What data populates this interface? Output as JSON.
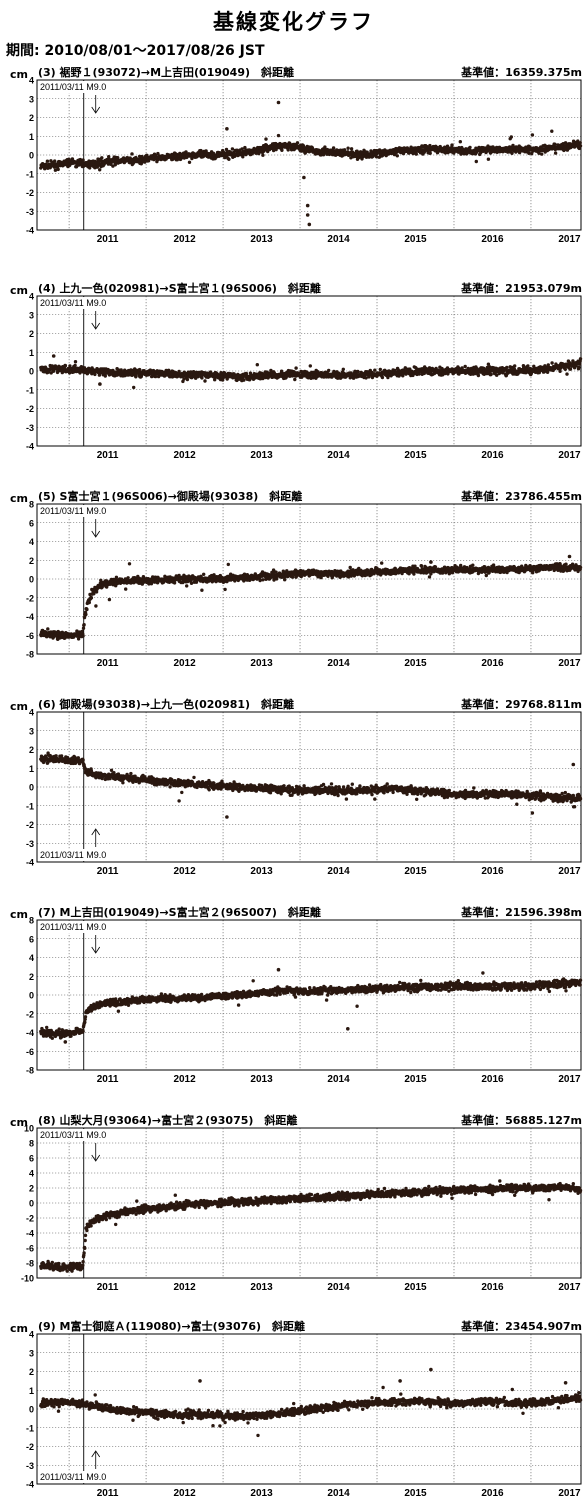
{
  "page": {
    "title": "基線変化グラフ",
    "period": "期間: 2010/08/01～2017/08/26 JST"
  },
  "chart_data": [
    {
      "type": "scatter",
      "title": "(3) 裾野１(93072)→M上吉田(019049)　斜距離",
      "baseline": "基準値：16359.375m",
      "ylabel": "cm",
      "ylim": [
        -4,
        4
      ],
      "yticks": [
        "4",
        "3",
        "2",
        "1",
        "0",
        "-1",
        "-2",
        "-3",
        "-4"
      ],
      "x_ticks": [
        "2011",
        "2012",
        "2013",
        "2014",
        "2015",
        "2016",
        "2017"
      ],
      "event_label": "2011/03/11 M9.0",
      "event_label_pos": "top",
      "series": [
        {
          "points": [
            [
              2010.7,
              -0.6
            ],
            [
              2010.9,
              -0.5
            ],
            [
              2011.0,
              -0.4
            ],
            [
              2011.3,
              -0.5
            ],
            [
              2011.5,
              -0.3
            ],
            [
              2011.8,
              -0.3
            ],
            [
              2012.0,
              -0.2
            ],
            [
              2012.3,
              -0.1
            ],
            [
              2012.6,
              0.0
            ],
            [
              2012.9,
              0.0
            ],
            [
              2013.2,
              0.1
            ],
            [
              2013.5,
              0.3
            ],
            [
              2013.8,
              0.5
            ],
            [
              2014.0,
              0.4
            ],
            [
              2014.2,
              0.2
            ],
            [
              2014.5,
              0.1
            ],
            [
              2014.8,
              0.0
            ],
            [
              2015.0,
              0.1
            ],
            [
              2015.3,
              0.2
            ],
            [
              2015.6,
              0.3
            ],
            [
              2015.9,
              0.3
            ],
            [
              2016.2,
              0.2
            ],
            [
              2016.5,
              0.3
            ],
            [
              2016.8,
              0.3
            ],
            [
              2017.1,
              0.3
            ],
            [
              2017.4,
              0.4
            ],
            [
              2017.65,
              0.6
            ]
          ]
        }
      ],
      "outliers": [
        [
          2013.72,
          2.8
        ],
        [
          2014.1,
          -3.2
        ],
        [
          2014.12,
          -3.7
        ],
        [
          2014.1,
          -2.7
        ],
        [
          2013.05,
          1.4
        ],
        [
          2014.05,
          -1.2
        ]
      ]
    },
    {
      "type": "scatter",
      "title": "(4) 上九一色(020981)→S富士宮１(96S006)　斜距離",
      "baseline": "基準値：21953.079m",
      "ylabel": "cm",
      "ylim": [
        -4,
        4
      ],
      "yticks": [
        "4",
        "3",
        "2",
        "1",
        "0",
        "-1",
        "-2",
        "-3",
        "-4"
      ],
      "x_ticks": [
        "2011",
        "2012",
        "2013",
        "2014",
        "2015",
        "2016",
        "2017"
      ],
      "event_label": "2011/03/11 M9.0",
      "event_label_pos": "top",
      "series": [
        {
          "points": [
            [
              2010.7,
              0.1
            ],
            [
              2011.0,
              0.1
            ],
            [
              2011.3,
              0.0
            ],
            [
              2011.6,
              -0.1
            ],
            [
              2012.0,
              -0.1
            ],
            [
              2012.4,
              -0.2
            ],
            [
              2012.8,
              -0.2
            ],
            [
              2013.2,
              -0.3
            ],
            [
              2013.6,
              -0.2
            ],
            [
              2014.0,
              -0.2
            ],
            [
              2014.4,
              -0.2
            ],
            [
              2014.8,
              -0.2
            ],
            [
              2015.2,
              -0.1
            ],
            [
              2015.6,
              0.0
            ],
            [
              2016.0,
              0.0
            ],
            [
              2016.4,
              0.0
            ],
            [
              2016.8,
              0.0
            ],
            [
              2017.2,
              0.1
            ],
            [
              2017.65,
              0.4
            ]
          ]
        }
      ],
      "outliers": [
        [
          2010.8,
          0.8
        ],
        [
          2011.4,
          -0.7
        ]
      ]
    },
    {
      "type": "scatter",
      "title": "(5) S富士宮１(96S006)→御殿場(93038)　斜距離",
      "baseline": "基準値：23786.455m",
      "ylabel": "cm",
      "ylim": [
        -8,
        8
      ],
      "yticks": [
        "8",
        "6",
        "4",
        "2",
        "0",
        "-2",
        "-4",
        "-6",
        "-8"
      ],
      "x_ticks": [
        "2011",
        "2012",
        "2013",
        "2014",
        "2015",
        "2016",
        "2017"
      ],
      "event_label": "2011/03/11 M9.0",
      "event_label_pos": "top",
      "series": [
        {
          "points": [
            [
              2010.65,
              -5.8
            ],
            [
              2010.9,
              -6.0
            ],
            [
              2011.1,
              -6.0
            ],
            [
              2011.18,
              -5.9
            ],
            [
              2011.21,
              -3.6
            ],
            [
              2011.25,
              -2.4
            ],
            [
              2011.3,
              -1.4
            ],
            [
              2011.4,
              -0.6
            ],
            [
              2011.6,
              -0.3
            ],
            [
              2012.0,
              -0.1
            ],
            [
              2012.5,
              0.0
            ],
            [
              2013.0,
              0.0
            ],
            [
              2013.5,
              0.3
            ],
            [
              2014.0,
              0.6
            ],
            [
              2014.5,
              0.6
            ],
            [
              2015.0,
              0.8
            ],
            [
              2015.5,
              0.9
            ],
            [
              2016.0,
              1.0
            ],
            [
              2016.5,
              1.0
            ],
            [
              2017.0,
              1.1
            ],
            [
              2017.4,
              1.3
            ],
            [
              2017.65,
              1.2
            ]
          ]
        }
      ],
      "outliers": [
        [
          2017.5,
          2.4
        ],
        [
          2015.7,
          1.8
        ]
      ]
    },
    {
      "type": "scatter",
      "title": "(6) 御殿場(93038)→上九一色(020981)　斜距離",
      "baseline": "基準値：29768.811m",
      "ylabel": "cm",
      "ylim": [
        -4,
        4
      ],
      "yticks": [
        "4",
        "3",
        "2",
        "1",
        "0",
        "-1",
        "-2",
        "-3",
        "-4"
      ],
      "x_ticks": [
        "2011",
        "2012",
        "2013",
        "2014",
        "2015",
        "2016",
        "2017"
      ],
      "event_label": "2011/03/11 M9.0",
      "event_label_pos": "bottom",
      "series": [
        {
          "points": [
            [
              2010.65,
              1.5
            ],
            [
              2010.9,
              1.5
            ],
            [
              2011.1,
              1.4
            ],
            [
              2011.18,
              1.4
            ],
            [
              2011.22,
              0.8
            ],
            [
              2011.4,
              0.6
            ],
            [
              2011.7,
              0.5
            ],
            [
              2012.0,
              0.4
            ],
            [
              2012.4,
              0.2
            ],
            [
              2012.8,
              0.1
            ],
            [
              2013.2,
              0.0
            ],
            [
              2013.6,
              -0.1
            ],
            [
              2014.0,
              -0.2
            ],
            [
              2014.4,
              -0.2
            ],
            [
              2014.8,
              -0.2
            ],
            [
              2015.2,
              -0.1
            ],
            [
              2015.6,
              -0.2
            ],
            [
              2016.0,
              -0.4
            ],
            [
              2016.4,
              -0.4
            ],
            [
              2016.8,
              -0.4
            ],
            [
              2017.2,
              -0.5
            ],
            [
              2017.65,
              -0.6
            ]
          ]
        }
      ],
      "outliers": [
        [
          2017.55,
          1.2
        ],
        [
          2013.05,
          -1.6
        ]
      ]
    },
    {
      "type": "scatter",
      "title": "(7) M上吉田(019049)→S富士宮２(96S007)　斜距離",
      "baseline": "基準値：21596.398m",
      "ylabel": "cm",
      "ylim": [
        -8,
        8
      ],
      "yticks": [
        "8",
        "6",
        "4",
        "2",
        "0",
        "-2",
        "-4",
        "-6",
        "-8"
      ],
      "x_ticks": [
        "2011",
        "2012",
        "2013",
        "2014",
        "2015",
        "2016",
        "2017"
      ],
      "event_label": "2011/03/11 M9.0",
      "event_label_pos": "top",
      "series": [
        {
          "points": [
            [
              2010.65,
              -4.0
            ],
            [
              2010.9,
              -4.1
            ],
            [
              2011.1,
              -3.9
            ],
            [
              2011.18,
              -3.8
            ],
            [
              2011.22,
              -1.9
            ],
            [
              2011.3,
              -1.3
            ],
            [
              2011.5,
              -0.9
            ],
            [
              2011.8,
              -0.6
            ],
            [
              2012.2,
              -0.4
            ],
            [
              2012.6,
              -0.3
            ],
            [
              2013.0,
              -0.1
            ],
            [
              2013.4,
              0.1
            ],
            [
              2013.8,
              0.5
            ],
            [
              2014.2,
              0.4
            ],
            [
              2014.6,
              0.5
            ],
            [
              2015.0,
              0.7
            ],
            [
              2015.4,
              0.8
            ],
            [
              2015.8,
              0.9
            ],
            [
              2016.2,
              0.9
            ],
            [
              2016.6,
              0.9
            ],
            [
              2017.0,
              1.0
            ],
            [
              2017.4,
              1.2
            ],
            [
              2017.65,
              1.4
            ]
          ]
        }
      ],
      "outliers": [
        [
          2013.72,
          2.7
        ],
        [
          2014.62,
          -3.6
        ],
        [
          2010.95,
          -5.0
        ]
      ]
    },
    {
      "type": "scatter",
      "title": "(8) 山梨大月(93064)→富士宮２(93075)　斜距離",
      "baseline": "基準値：56885.127m",
      "ylabel": "cm",
      "ylim": [
        -10,
        10
      ],
      "yticks": [
        "10",
        "8",
        "6",
        "4",
        "2",
        "0",
        "-2",
        "-4",
        "-6",
        "-8",
        "-10"
      ],
      "x_ticks": [
        "2011",
        "2012",
        "2013",
        "2014",
        "2015",
        "2016",
        "2017"
      ],
      "event_label": "2011/03/11 M9.0",
      "event_label_pos": "top",
      "series": [
        {
          "points": [
            [
              2010.65,
              -8.3
            ],
            [
              2010.9,
              -8.5
            ],
            [
              2011.1,
              -8.6
            ],
            [
              2011.18,
              -8.5
            ],
            [
              2011.22,
              -3.4
            ],
            [
              2011.3,
              -2.4
            ],
            [
              2011.5,
              -1.6
            ],
            [
              2011.8,
              -1.0
            ],
            [
              2012.2,
              -0.6
            ],
            [
              2012.6,
              -0.2
            ],
            [
              2013.0,
              0.1
            ],
            [
              2013.4,
              0.3
            ],
            [
              2013.8,
              0.5
            ],
            [
              2014.2,
              0.7
            ],
            [
              2014.6,
              0.9
            ],
            [
              2015.0,
              1.2
            ],
            [
              2015.4,
              1.4
            ],
            [
              2015.8,
              1.6
            ],
            [
              2016.2,
              1.8
            ],
            [
              2016.6,
              1.9
            ],
            [
              2017.0,
              2.0
            ],
            [
              2017.4,
              2.1
            ],
            [
              2017.65,
              1.8
            ]
          ]
        }
      ],
      "outliers": []
    },
    {
      "type": "scatter",
      "title": "(9) M富士御庭Ａ(119080)→富士(93076)　斜距離",
      "baseline": "基準値：23454.907m",
      "ylabel": "cm",
      "ylim": [
        -4,
        4
      ],
      "yticks": [
        "4",
        "3",
        "2",
        "1",
        "0",
        "-1",
        "-2",
        "-3",
        "-4"
      ],
      "x_ticks": [
        "2011",
        "2012",
        "2013",
        "2014",
        "2015",
        "2016",
        "2017"
      ],
      "event_label": "2011/03/11 M9.0",
      "event_label_pos": "bottom",
      "series": [
        {
          "points": [
            [
              2010.65,
              0.3
            ],
            [
              2010.9,
              0.4
            ],
            [
              2011.1,
              0.3
            ],
            [
              2011.4,
              0.1
            ],
            [
              2011.7,
              -0.1
            ],
            [
              2012.0,
              -0.2
            ],
            [
              2012.4,
              -0.3
            ],
            [
              2012.8,
              -0.3
            ],
            [
              2013.2,
              -0.4
            ],
            [
              2013.6,
              -0.3
            ],
            [
              2014.0,
              -0.1
            ],
            [
              2014.4,
              0.1
            ],
            [
              2014.8,
              0.3
            ],
            [
              2015.2,
              0.4
            ],
            [
              2015.6,
              0.4
            ],
            [
              2016.0,
              0.3
            ],
            [
              2016.4,
              0.4
            ],
            [
              2016.8,
              0.3
            ],
            [
              2017.2,
              0.4
            ],
            [
              2017.65,
              0.6
            ]
          ]
        }
      ],
      "outliers": [
        [
          2015.7,
          2.1
        ],
        [
          2015.3,
          1.5
        ],
        [
          2012.7,
          1.5
        ],
        [
          2017.45,
          1.4
        ]
      ]
    }
  ]
}
